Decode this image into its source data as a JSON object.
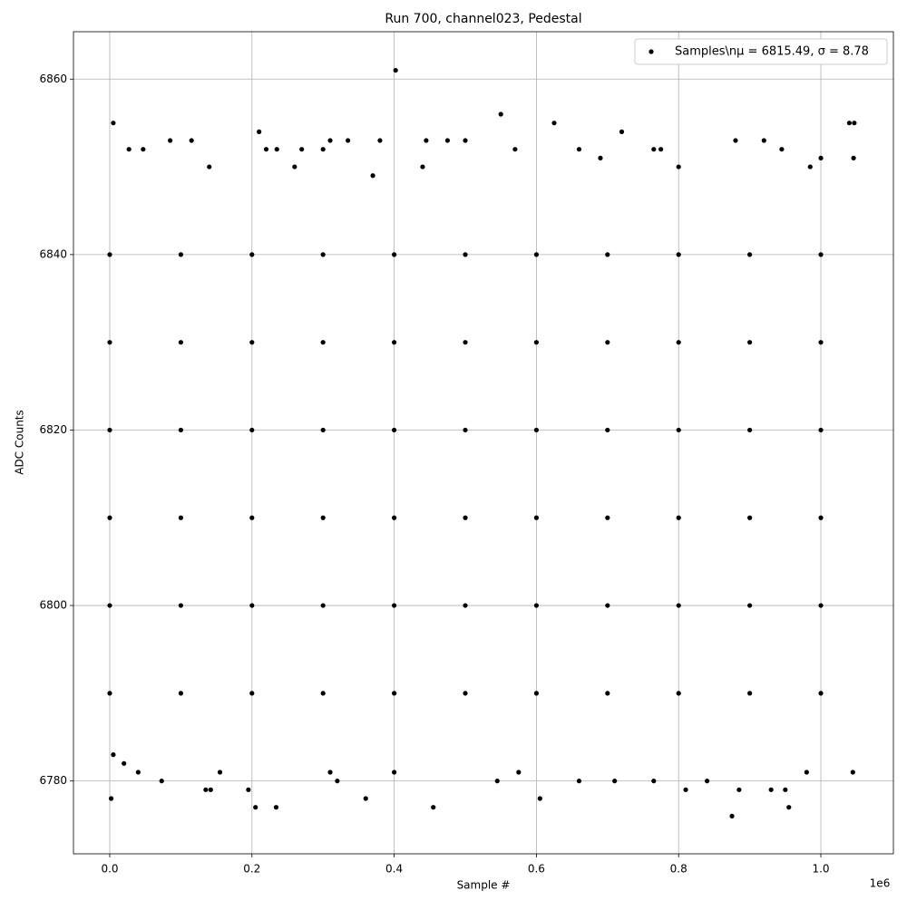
{
  "chart_data": {
    "type": "scatter",
    "title": "Run 700, channel023, Pedestal",
    "xlabel": "Sample #",
    "ylabel": "ADC Counts",
    "x_offset_label": "1e6",
    "xlim": [
      -51000,
      1102000
    ],
    "ylim": [
      6771.7,
      6865.4
    ],
    "xticks": [
      {
        "value": 0,
        "label": "0.0"
      },
      {
        "value": 200000,
        "label": "0.2"
      },
      {
        "value": 400000,
        "label": "0.4"
      },
      {
        "value": 600000,
        "label": "0.6"
      },
      {
        "value": 800000,
        "label": "0.8"
      },
      {
        "value": 1000000,
        "label": "1.0"
      }
    ],
    "yticks": [
      6780,
      6800,
      6820,
      6840,
      6860
    ],
    "grid": true,
    "legend": "upper right",
    "series": [
      {
        "name": "Samples\\nμ = 6815.49, σ = 8.78",
        "color": "#000000",
        "x": [
          5000,
          27000,
          47000,
          85000,
          115000,
          140000,
          210000,
          220000,
          235000,
          260000,
          270000,
          300000,
          310000,
          335000,
          370000,
          380000,
          402000,
          440000,
          445000,
          475000,
          500000,
          550000,
          570000,
          625000,
          660000,
          690000,
          720000,
          765000,
          775000,
          800000,
          880000,
          920000,
          945000,
          985000,
          1000000,
          1040000,
          1047000,
          1046000,
          2000,
          5000,
          20000,
          40000,
          73000,
          135000,
          142000,
          155000,
          195000,
          205000,
          234000,
          310000,
          320000,
          360000,
          400000,
          455000,
          545000,
          575000,
          605000,
          660000,
          710000,
          765000,
          810000,
          840000,
          875000,
          885000,
          930000,
          950000,
          955000,
          980000,
          1045000,
          0,
          0,
          0,
          0,
          0,
          0,
          100000,
          100000,
          100000,
          100000,
          100000,
          100000,
          200000,
          200000,
          200000,
          200000,
          200000,
          200000,
          300000,
          300000,
          300000,
          300000,
          300000,
          300000,
          400000,
          400000,
          400000,
          400000,
          400000,
          400000,
          500000,
          500000,
          500000,
          500000,
          500000,
          500000,
          600000,
          600000,
          600000,
          600000,
          600000,
          600000,
          700000,
          700000,
          700000,
          700000,
          700000,
          700000,
          800000,
          800000,
          800000,
          800000,
          800000,
          800000,
          900000,
          900000,
          900000,
          900000,
          900000,
          900000,
          1000000,
          1000000,
          1000000,
          1000000,
          1000000,
          1000000
        ],
        "values": [
          6855,
          6852,
          6852,
          6853,
          6853,
          6850,
          6854,
          6852,
          6852,
          6850,
          6852,
          6852,
          6853,
          6853,
          6849,
          6853,
          6861,
          6850,
          6853,
          6853,
          6853,
          6856,
          6852,
          6855,
          6852,
          6851,
          6854,
          6852,
          6852,
          6850,
          6853,
          6853,
          6852,
          6850,
          6851,
          6855,
          6855,
          6851,
          6778,
          6783,
          6782,
          6781,
          6780,
          6779,
          6779,
          6781,
          6779,
          6777,
          6777,
          6781,
          6780,
          6778,
          6781,
          6777,
          6780,
          6781,
          6778,
          6780,
          6780,
          6780,
          6779,
          6780,
          6776,
          6779,
          6779,
          6779,
          6777,
          6781,
          6781,
          6790,
          6800,
          6810,
          6820,
          6830,
          6840,
          6790,
          6800,
          6810,
          6820,
          6830,
          6840,
          6790,
          6800,
          6810,
          6820,
          6830,
          6840,
          6790,
          6800,
          6810,
          6820,
          6830,
          6840,
          6790,
          6800,
          6810,
          6820,
          6830,
          6840,
          6790,
          6800,
          6810,
          6820,
          6830,
          6840,
          6790,
          6800,
          6810,
          6820,
          6830,
          6840,
          6790,
          6800,
          6810,
          6820,
          6830,
          6840,
          6790,
          6800,
          6810,
          6820,
          6830,
          6840,
          6790,
          6800,
          6810,
          6820,
          6830,
          6840,
          6790,
          6800,
          6810,
          6820,
          6830,
          6840
        ]
      }
    ]
  }
}
